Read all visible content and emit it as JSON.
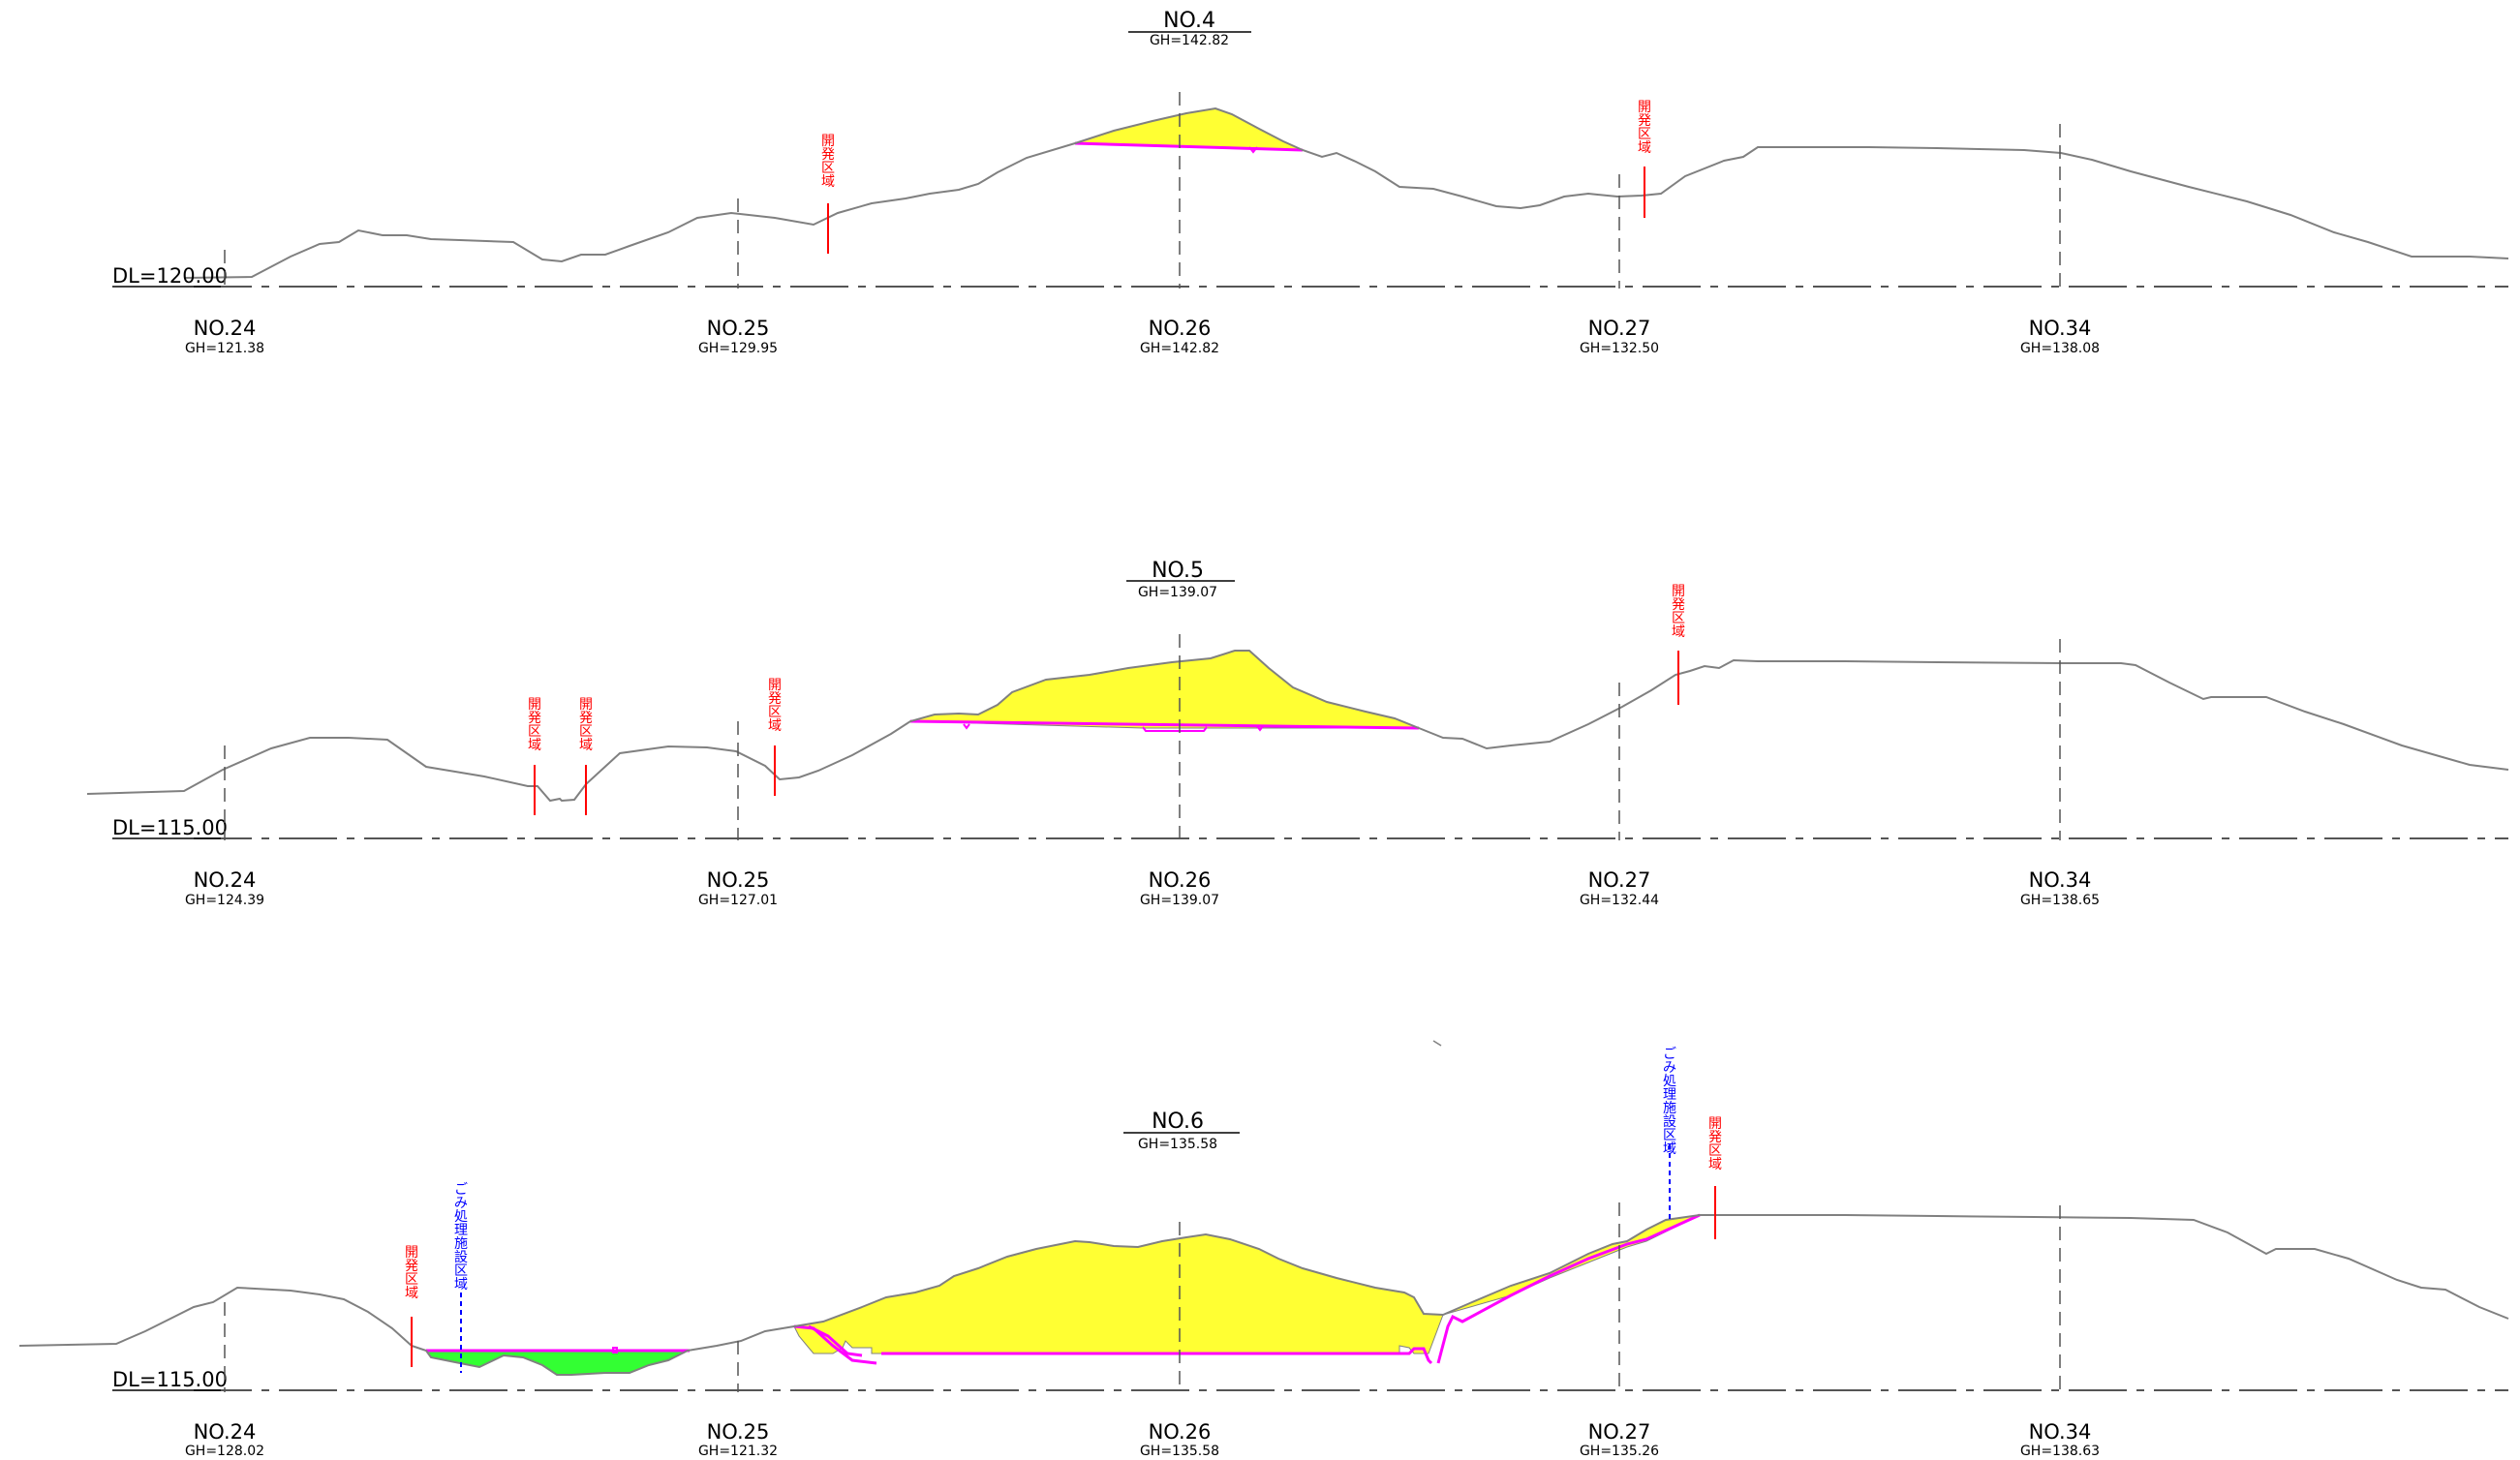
{
  "sections": [
    {
      "title": "NO.4",
      "gh": "GH=142.82",
      "datum_label": "DL=120.00",
      "stations": [
        {
          "label": "NO.24",
          "gh": "GH=121.38"
        },
        {
          "label": "NO.25",
          "gh": "GH=129.95"
        },
        {
          "label": "NO.26",
          "gh": "GH=142.82"
        },
        {
          "label": "NO.27",
          "gh": "GH=132.50"
        },
        {
          "label": "NO.34",
          "gh": "GH=138.08"
        }
      ],
      "markers": [
        {
          "text": "開発区域",
          "color": "#ff0000"
        },
        {
          "text": "開発区域",
          "color": "#ff0000"
        }
      ]
    },
    {
      "title": "NO.5",
      "gh": "GH=139.07",
      "datum_label": "DL=115.00",
      "stations": [
        {
          "label": "NO.24",
          "gh": "GH=124.39"
        },
        {
          "label": "NO.25",
          "gh": "GH=127.01"
        },
        {
          "label": "NO.26",
          "gh": "GH=139.07"
        },
        {
          "label": "NO.27",
          "gh": "GH=132.44"
        },
        {
          "label": "NO.34",
          "gh": "GH=138.65"
        }
      ],
      "markers": [
        {
          "text": "開発区域",
          "color": "#ff0000"
        },
        {
          "text": "開発区域",
          "color": "#ff0000"
        },
        {
          "text": "開発区域",
          "color": "#ff0000"
        },
        {
          "text": "開発区域",
          "color": "#ff0000"
        }
      ]
    },
    {
      "title": "NO.6",
      "gh": "GH=135.58",
      "datum_label": "DL=115.00",
      "stations": [
        {
          "label": "NO.24",
          "gh": "GH=128.02"
        },
        {
          "label": "NO.25",
          "gh": "GH=121.32"
        },
        {
          "label": "NO.26",
          "gh": "GH=135.58"
        },
        {
          "label": "NO.27",
          "gh": "GH=135.26"
        },
        {
          "label": "NO.34",
          "gh": "GH=138.63"
        }
      ],
      "markers": [
        {
          "text": "開発区域",
          "color": "#ff0000"
        },
        {
          "text": "ごみ処理施設区域",
          "color": "#0000ff"
        },
        {
          "text": "ごみ処理施設区域",
          "color": "#0000ff"
        },
        {
          "text": "開発区域",
          "color": "#ff0000"
        }
      ]
    }
  ],
  "colors": {
    "ground_line": "#808080",
    "cut_fill": "#ffff33",
    "green_fill": "#33ff33",
    "boundary": "#ff00ff",
    "development_area": "#ff0000",
    "waste_facility_area": "#0000ff",
    "datum_line": "#555555"
  }
}
